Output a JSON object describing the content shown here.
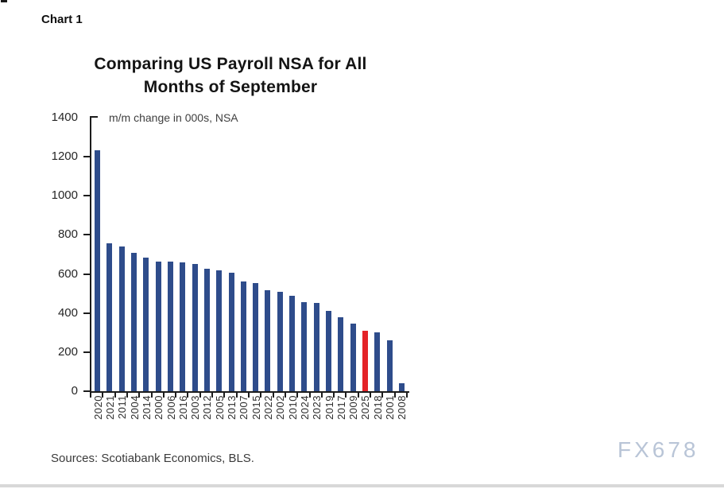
{
  "page": {
    "chart_label": "Chart 1",
    "sources_note": "Sources: Scotiabank Economics, BLS.",
    "watermark": "FX678"
  },
  "chart_data": {
    "type": "bar",
    "title": "Comparing US Payroll NSA for All Months of September",
    "title_lines": [
      "Comparing US Payroll NSA for All",
      "Months of September"
    ],
    "axis_note": "m/m change in 000s, NSA",
    "ylabel": "m/m change in 000s, NSA",
    "xlabel": "",
    "categories": [
      "2020",
      "2021",
      "2011",
      "2004",
      "2014",
      "2000",
      "2006",
      "2016",
      "2003",
      "2012",
      "2005",
      "2013",
      "2007",
      "2015",
      "2022",
      "2002",
      "2010",
      "2024",
      "2023",
      "2019",
      "2017",
      "2009",
      "2025",
      "2018",
      "2001",
      "2008"
    ],
    "values": [
      1235,
      755,
      740,
      710,
      685,
      665,
      665,
      660,
      650,
      625,
      620,
      605,
      560,
      555,
      515,
      510,
      490,
      455,
      450,
      410,
      380,
      345,
      310,
      300,
      260,
      40
    ],
    "highlight_category": "2025",
    "sorted": "descending by value",
    "ylim": [
      0,
      1400
    ],
    "yticks": [
      1400,
      1200,
      1000,
      800,
      600,
      400,
      200,
      0
    ],
    "grid": false,
    "legend_position": "none",
    "colors": {
      "bar": "#2e4c8b",
      "highlight": "#e42328",
      "axis": "#1c1c1c"
    }
  }
}
